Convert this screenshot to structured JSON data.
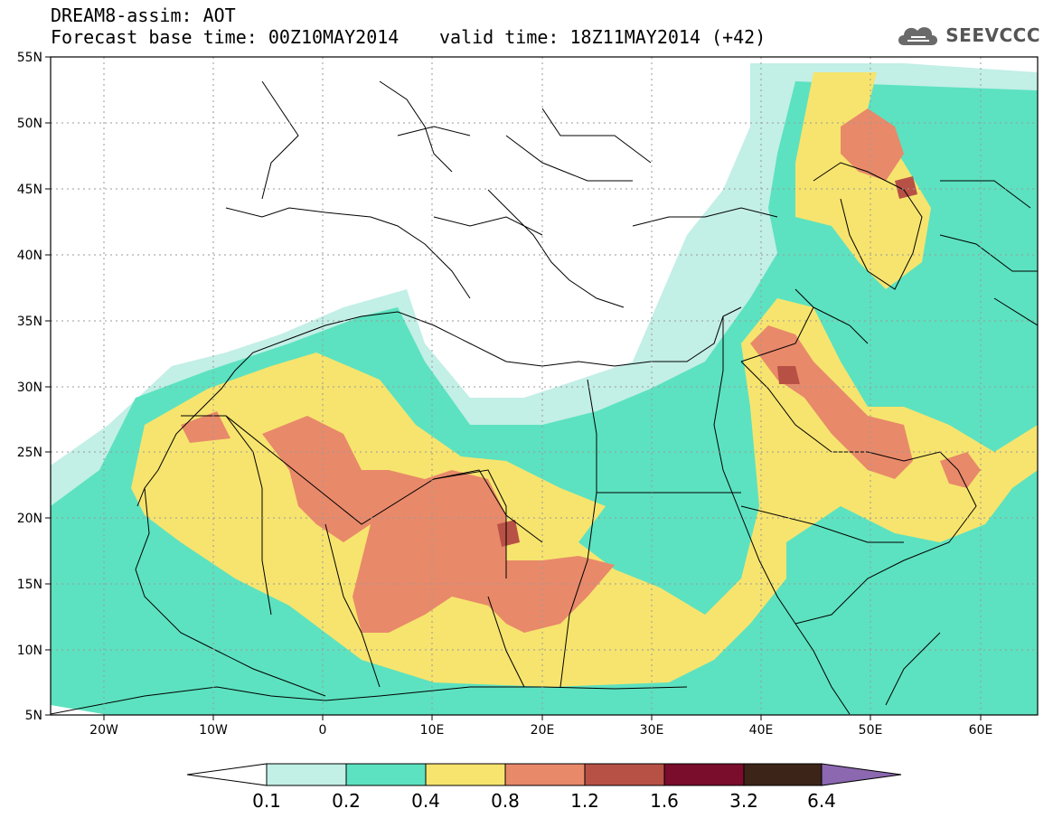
{
  "header": {
    "model_line": "DREAM8-assim: AOT",
    "base_time_line": "Forecast base time: 00Z10MAY2014",
    "valid_time_line": "valid time: 18Z11MAY2014 (+42)",
    "logo_text": "SEEVCCC"
  },
  "map": {
    "lat_labels": [
      "55N",
      "50N",
      "45N",
      "40N",
      "35N",
      "30N",
      "25N",
      "20N",
      "15N",
      "10N",
      "5N"
    ],
    "lon_labels": [
      "20W",
      "10W",
      "0",
      "10E",
      "20E",
      "30E",
      "40E",
      "50E",
      "60E"
    ]
  },
  "legend": {
    "thresholds": [
      "0.1",
      "0.2",
      "0.4",
      "0.8",
      "1.2",
      "1.6",
      "3.2",
      "6.4"
    ],
    "colors": [
      "#c2efe6",
      "#5ce2c0",
      "#f7e46e",
      "#e8896a",
      "#b85145",
      "#7a0c2c",
      "#3c2418",
      "#8b68b0"
    ],
    "below_color": "#ffffff"
  },
  "chart_data": {
    "type": "map",
    "variable": "AOT",
    "extent": {
      "lon": [
        -25,
        65
      ],
      "lat": [
        5,
        55
      ]
    },
    "bins": [
      {
        "min": 0.1,
        "max": 0.2,
        "color": "#c2efe6"
      },
      {
        "min": 0.2,
        "max": 0.4,
        "color": "#5ce2c0"
      },
      {
        "min": 0.4,
        "max": 0.8,
        "color": "#f7e46e"
      },
      {
        "min": 0.8,
        "max": 1.2,
        "color": "#e8896a"
      },
      {
        "min": 1.2,
        "max": 1.6,
        "color": "#b85145"
      },
      {
        "min": 1.6,
        "max": 3.2,
        "color": "#7a0c2c"
      },
      {
        "min": 3.2,
        "max": 6.4,
        "color": "#3c2418"
      },
      {
        "min": 6.4,
        "max": null,
        "color": "#8b68b0"
      }
    ]
  }
}
